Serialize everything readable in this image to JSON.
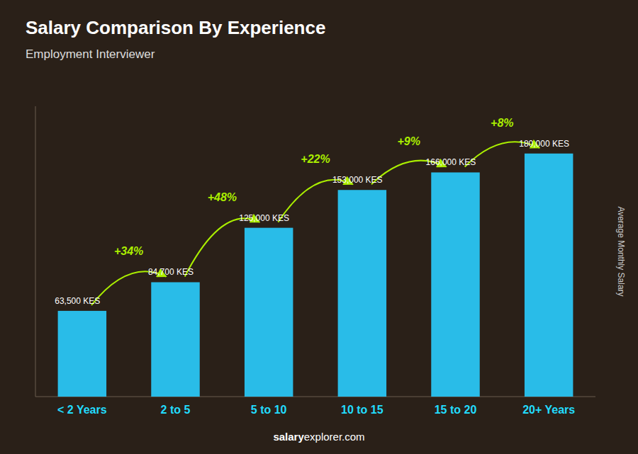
{
  "chart_data": {
    "type": "bar",
    "title": "Salary Comparison By Experience",
    "subtitle": "Employment Interviewer",
    "categories": [
      "< 2 Years",
      "2 to 5",
      "5 to 10",
      "10 to 15",
      "15 to 20",
      "20+ Years"
    ],
    "values": [
      63500,
      84700,
      125000,
      153000,
      166000,
      180000
    ],
    "value_labels": [
      "63,500 KES",
      "84,700 KES",
      "125,000 KES",
      "153,000 KES",
      "166,000 KES",
      "180,000 KES"
    ],
    "data_labels": true,
    "annotations": [
      "+34%",
      "+48%",
      "+22%",
      "+9%",
      "+8%"
    ],
    "color": "#29bce8",
    "ylim": [
      0,
      215000
    ],
    "ylabel": "Average Monthly Salary",
    "tick_labels": "x",
    "footer": [
      "salary",
      "explorer.com"
    ]
  }
}
